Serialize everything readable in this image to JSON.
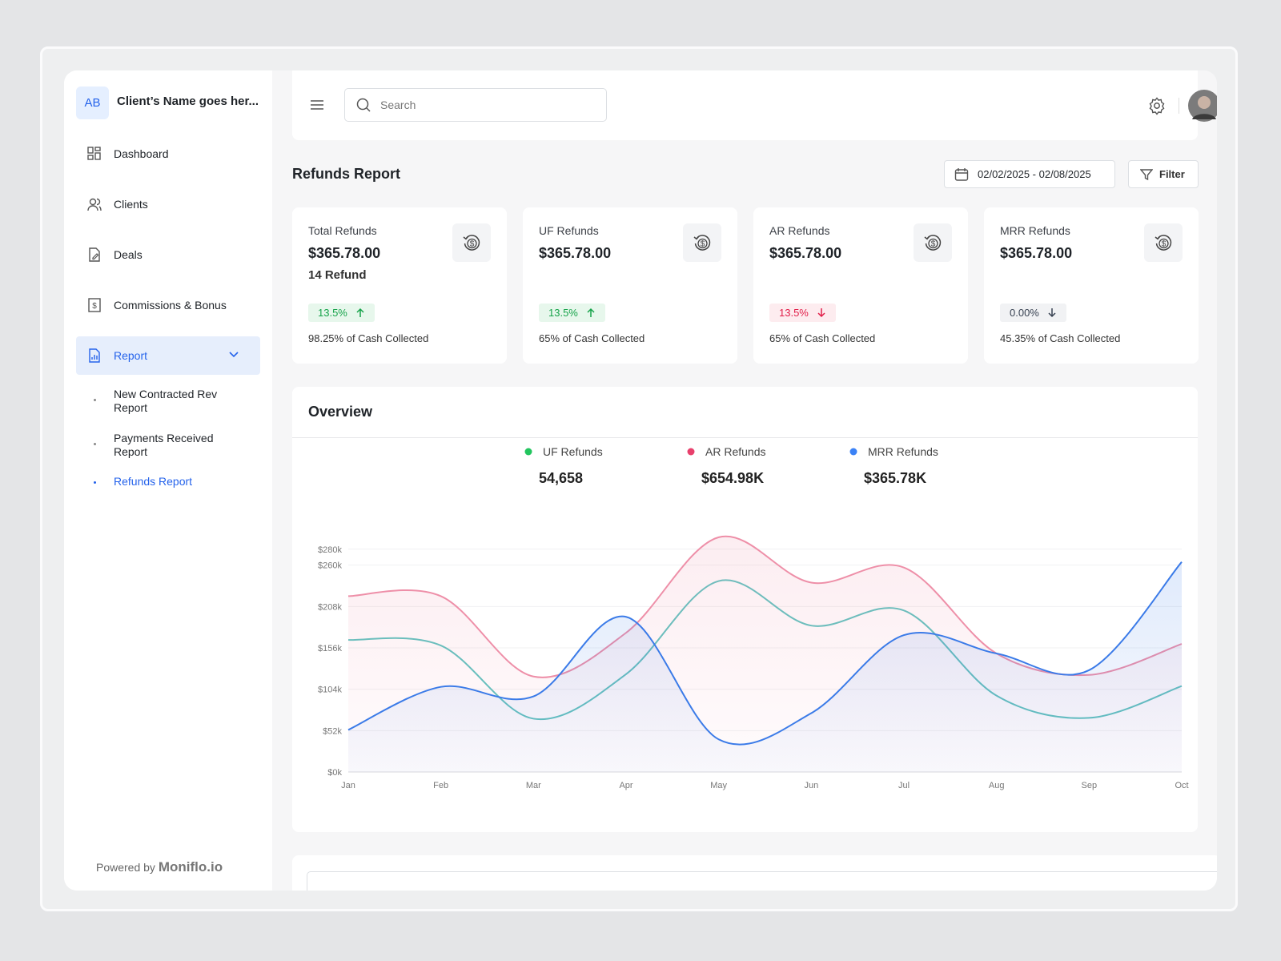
{
  "sidebar": {
    "badge": "AB",
    "client_name": "Client’s Name goes her...",
    "nav": [
      "Dashboard",
      "Clients",
      "Deals",
      "Commissions & Bonus",
      "Report"
    ],
    "subnav": [
      "New Contracted Rev Report",
      "Payments Received Report",
      "Refunds Report"
    ],
    "powered_by": "Powered by",
    "brand": "Moniflo.io"
  },
  "topbar": {
    "search_placeholder": "Search"
  },
  "report": {
    "title": "Refunds Report",
    "date_range": "02/02/2025 - 02/08/2025",
    "filter": "Filter"
  },
  "cards": [
    {
      "label": "Total Refunds",
      "amount": "$365.78.00",
      "sub": "14 Refund",
      "change": "13.5%",
      "trend": "up",
      "color": "#16a34a",
      "badge_bg": "#e7f7ec",
      "footer_value": "98.25%",
      "footer_text": "of Cash Collected"
    },
    {
      "label": "UF Refunds",
      "amount": "$365.78.00",
      "change": "13.5%",
      "trend": "up",
      "color": "#16a34a",
      "badge_bg": "#e7f7ec",
      "footer_value": "65%",
      "footer_text": "of Cash Collected"
    },
    {
      "label": "AR Refunds",
      "amount": "$365.78.00",
      "change": "13.5%",
      "trend": "down",
      "color": "#e11d48",
      "badge_bg": "#fdecef",
      "footer_value": "65%",
      "footer_text": "of Cash Collected"
    },
    {
      "label": "MRR Refunds",
      "amount": "$365.78.00",
      "change": "0.00%",
      "trend": "down",
      "color": "#374151",
      "badge_bg": "#f1f2f4",
      "footer_value": "45.35%",
      "footer_text": "of Cash Collected"
    }
  ],
  "overview": {
    "title": "Overview",
    "legend_totals": [
      "54,658",
      "$654.98K",
      "$365.78K"
    ]
  },
  "chart_data": {
    "type": "line",
    "categories": [
      "Jan",
      "Feb",
      "Mar",
      "Apr",
      "May",
      "Jun",
      "Jul",
      "Aug",
      "Sep",
      "Oct"
    ],
    "series": [
      {
        "name": "UF Refunds",
        "color": "#5cc3bf",
        "marker_color": "#22c55e",
        "area": false,
        "values": [
          166,
          159,
          67,
          123,
          240,
          184,
          203,
          96,
          68,
          108
        ]
      },
      {
        "name": "AR Refunds",
        "color": "#ee8fa8",
        "marker_color": "#e8406c",
        "area": true,
        "values": [
          221,
          221,
          120,
          175,
          295,
          238,
          257,
          149,
          122,
          161
        ]
      },
      {
        "name": "MRR Refunds",
        "color": "#3b7be8",
        "marker_color": "#3b82f6",
        "area": true,
        "values": [
          53,
          107,
          95,
          195,
          41,
          74,
          172,
          149,
          128,
          264
        ]
      }
    ],
    "ylim": [
      0,
      312
    ],
    "yticks": [
      {
        "value": 0,
        "label": "$0k"
      },
      {
        "value": 52,
        "label": "$52k"
      },
      {
        "value": 104,
        "label": "$104k"
      },
      {
        "value": 156,
        "label": "$156k"
      },
      {
        "value": 208,
        "label": "$208k"
      },
      {
        "value": 260,
        "label": "$260k"
      },
      {
        "value": 280,
        "label": "$280k"
      }
    ],
    "grid": true
  }
}
